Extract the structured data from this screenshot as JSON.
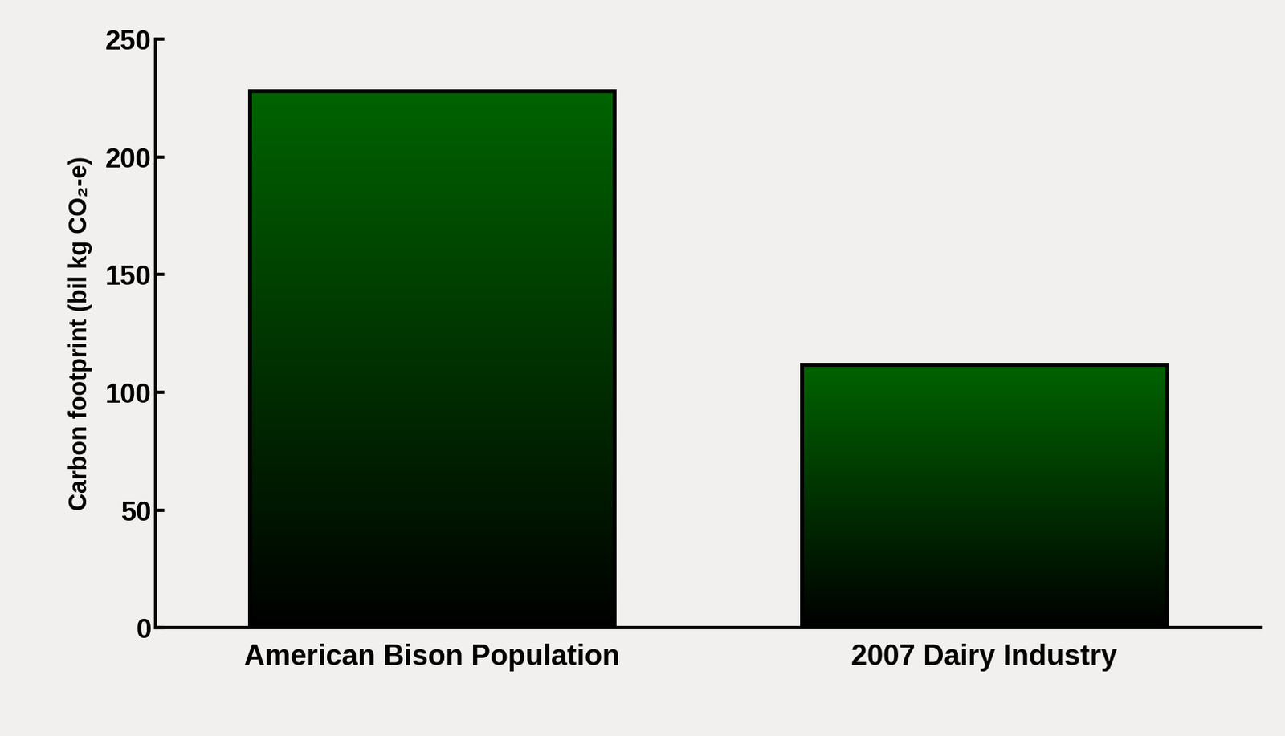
{
  "chart_data": {
    "type": "bar",
    "categories": [
      "American Bison Population",
      "2007 Dairy Industry"
    ],
    "values": [
      228,
      112
    ],
    "color": "#006400",
    "ylabel": "Carbon footprint (bil kg CO₂-e)",
    "ylim": [
      0,
      250
    ],
    "yticks": [
      0,
      50,
      100,
      150,
      200,
      250
    ],
    "grid": false
  }
}
